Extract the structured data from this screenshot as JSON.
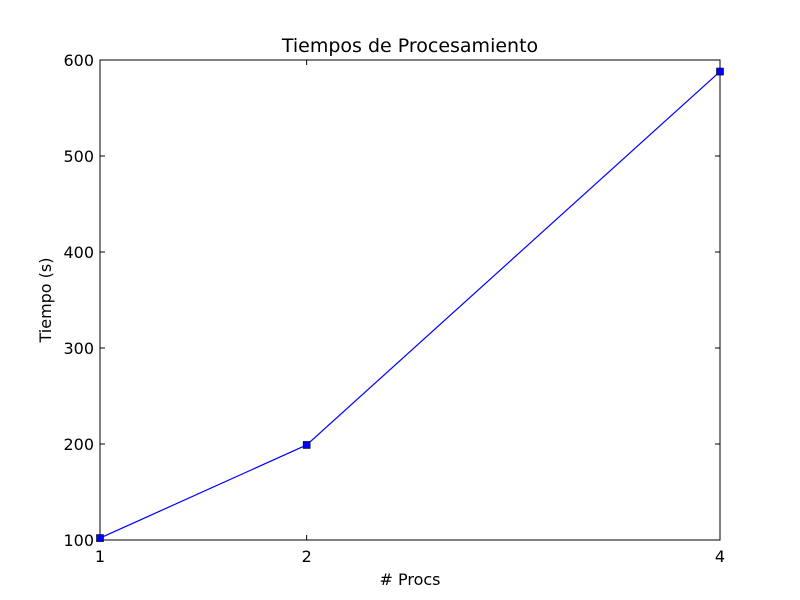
{
  "chart_data": {
    "type": "line",
    "title": "Tiempos de Procesamiento",
    "xlabel": "# Procs",
    "ylabel": "Tiempo (s)",
    "x": [
      1,
      2,
      4
    ],
    "series": [
      {
        "values": [
          102,
          199,
          588
        ],
        "color": "#0000ff",
        "marker": "square"
      }
    ],
    "xlim": [
      1,
      4
    ],
    "ylim": [
      100,
      600
    ],
    "xticks": [
      1,
      2,
      4
    ],
    "yticks": [
      100,
      200,
      300,
      400,
      500,
      600
    ],
    "grid": false
  }
}
